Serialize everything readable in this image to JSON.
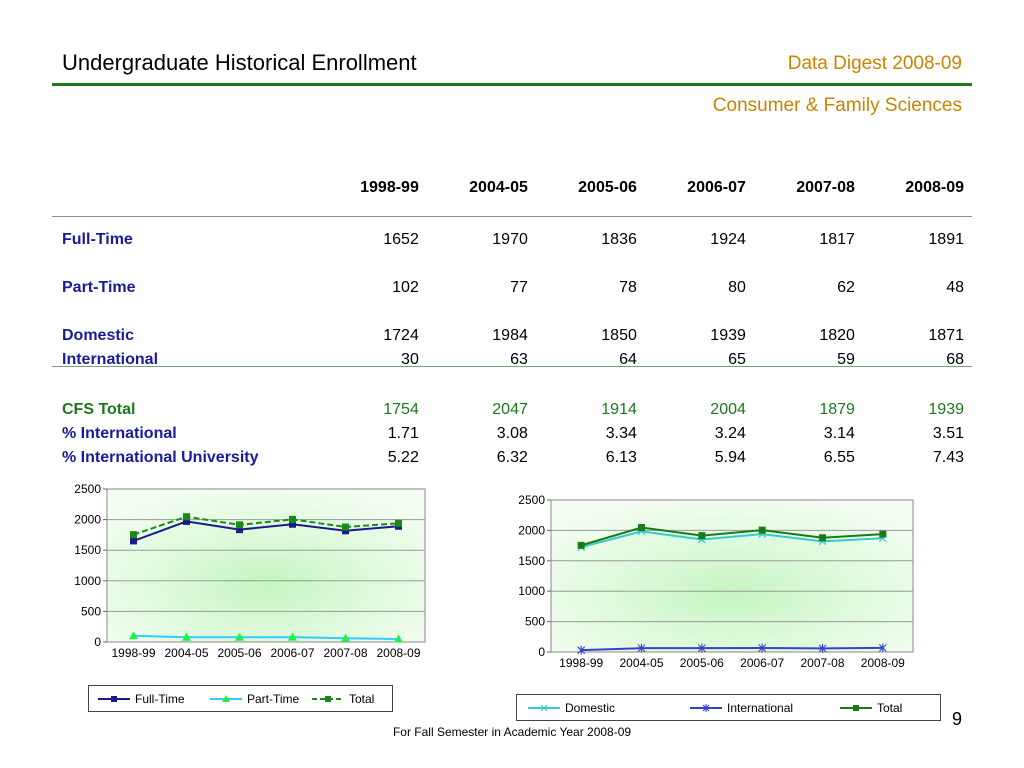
{
  "header": {
    "title": "Undergraduate Historical Enrollment",
    "digest": "Data Digest 2008-09",
    "department": "Consumer & Family Sciences"
  },
  "table": {
    "years": [
      "1998-99",
      "2004-05",
      "2005-06",
      "2006-07",
      "2007-08",
      "2008-09"
    ],
    "full_time": {
      "label": "Full-Time",
      "values": [
        "1652",
        "1970",
        "1836",
        "1924",
        "1817",
        "1891"
      ]
    },
    "part_time": {
      "label": "Part-Time",
      "values": [
        "102",
        "77",
        "78",
        "80",
        "62",
        "48"
      ]
    },
    "domestic": {
      "label": "Domestic",
      "values": [
        "1724",
        "1984",
        "1850",
        "1939",
        "1820",
        "1871"
      ]
    },
    "international": {
      "label": "International",
      "values": [
        "30",
        "63",
        "64",
        "65",
        "59",
        "68"
      ]
    },
    "cfs_total": {
      "label": "CFS Total",
      "values": [
        "1754",
        "2047",
        "1914",
        "2004",
        "1879",
        "1939"
      ]
    },
    "pct_international": {
      "label": "% International",
      "values": [
        "1.71",
        "3.08",
        "3.34",
        "3.24",
        "3.14",
        "3.51"
      ]
    },
    "pct_intl_university": {
      "label": "% International University",
      "values": [
        "5.22",
        "6.32",
        "6.13",
        "5.94",
        "6.55",
        "7.43"
      ]
    }
  },
  "chart_data": [
    {
      "type": "line",
      "categories": [
        "1998-99",
        "2004-05",
        "2005-06",
        "2006-07",
        "2007-08",
        "2008-09"
      ],
      "yticks": [
        "0",
        "500",
        "1000",
        "1500",
        "2000",
        "2500"
      ],
      "ylim": [
        0,
        2500
      ],
      "legend": "bottom",
      "series": [
        {
          "name": "Full-Time",
          "values": [
            1652,
            1970,
            1836,
            1924,
            1817,
            1891
          ],
          "color": "#1a1a8a",
          "marker": "square",
          "dash": false
        },
        {
          "name": "Part-Time",
          "values": [
            102,
            77,
            78,
            80,
            62,
            48
          ],
          "color": "#33ccff",
          "marker": "triangle",
          "dash": false
        },
        {
          "name": "Total",
          "values": [
            1754,
            2047,
            1914,
            2004,
            1879,
            1939
          ],
          "color": "#1a8a1a",
          "marker": "square",
          "dash": true
        }
      ]
    },
    {
      "type": "line",
      "categories": [
        "1998-99",
        "2004-05",
        "2005-06",
        "2006-07",
        "2007-08",
        "2008-09"
      ],
      "yticks": [
        "0",
        "500",
        "1000",
        "1500",
        "2000",
        "2500"
      ],
      "ylim": [
        0,
        2500
      ],
      "legend": "bottom",
      "series": [
        {
          "name": "Domestic",
          "values": [
            1724,
            1984,
            1850,
            1939,
            1820,
            1871
          ],
          "color": "#33cccc",
          "marker": "x",
          "dash": false
        },
        {
          "name": "International",
          "values": [
            30,
            63,
            64,
            65,
            59,
            68
          ],
          "color": "#3344cc",
          "marker": "star",
          "dash": false
        },
        {
          "name": "Total",
          "values": [
            1754,
            2047,
            1914,
            2004,
            1879,
            1939
          ],
          "color": "#1a7a1a",
          "marker": "square",
          "dash": false
        }
      ]
    }
  ],
  "footer": {
    "note": "For Fall Semester in Academic Year 2008-09",
    "page": "9"
  }
}
